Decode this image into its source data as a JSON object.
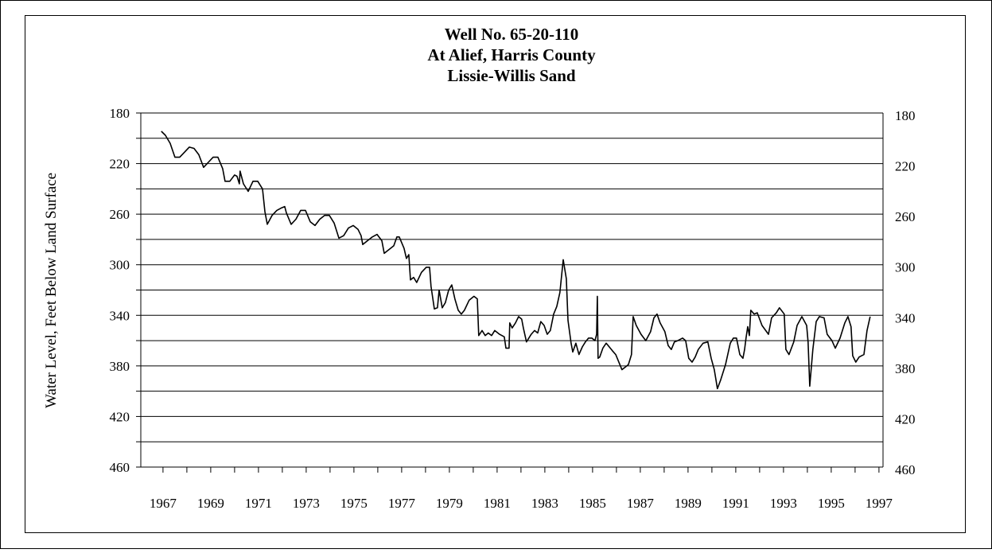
{
  "chart_data": {
    "type": "line",
    "title": [
      "Well No. 65-20-110",
      "At Alief, Harris County",
      "Lissie-Willis Sand"
    ],
    "ylabel": "Water Level, Feet Below Land Surface",
    "color": "#000000",
    "inverted_y": true,
    "grid": true,
    "xlim": [
      1966.07,
      1997.17
    ],
    "xticks": [
      1967,
      1969,
      1971,
      1973,
      1975,
      1977,
      1979,
      1981,
      1983,
      1985,
      1987,
      1989,
      1991,
      1993,
      1995,
      1997
    ],
    "x_minor_ticks": [
      1968,
      1970,
      1972,
      1974,
      1976,
      1978,
      1980,
      1982,
      1984,
      1986,
      1988,
      1990,
      1992,
      1994,
      1996
    ],
    "ylim": [
      180,
      460
    ],
    "yticks": [
      180,
      220,
      260,
      300,
      340,
      380,
      420,
      460
    ],
    "y_minor_ticks": [
      200,
      240,
      280,
      320,
      360,
      400,
      440
    ],
    "y2lim": [
      180,
      460
    ],
    "y2ticks": [
      180,
      220,
      260,
      300,
      340,
      380,
      420,
      460
    ],
    "x": [
      1966.93,
      1967.1,
      1967.3,
      1967.5,
      1967.7,
      1967.9,
      1968.1,
      1968.3,
      1968.5,
      1968.7,
      1968.9,
      1969.1,
      1969.3,
      1969.5,
      1969.6,
      1969.8,
      1970.0,
      1970.1,
      1970.2,
      1970.23,
      1970.37,
      1970.57,
      1970.77,
      1970.97,
      1971.17,
      1971.27,
      1971.37,
      1971.57,
      1971.77,
      1971.97,
      1972.1,
      1972.17,
      1972.37,
      1972.57,
      1972.77,
      1972.97,
      1973.17,
      1973.37,
      1973.57,
      1973.77,
      1973.97,
      1974.17,
      1974.37,
      1974.57,
      1974.77,
      1974.97,
      1975.17,
      1975.3,
      1975.37,
      1975.57,
      1975.77,
      1975.97,
      1976.17,
      1976.27,
      1976.47,
      1976.67,
      1976.8,
      1976.9,
      1977.1,
      1977.2,
      1977.3,
      1977.37,
      1977.5,
      1977.63,
      1977.83,
      1978.03,
      1978.17,
      1978.23,
      1978.37,
      1978.5,
      1978.57,
      1978.7,
      1978.83,
      1978.97,
      1979.1,
      1979.23,
      1979.37,
      1979.5,
      1979.63,
      1979.83,
      1980.03,
      1980.17,
      1980.23,
      1980.37,
      1980.5,
      1980.63,
      1980.77,
      1980.9,
      1981.1,
      1981.3,
      1981.37,
      1981.5,
      1981.53,
      1981.63,
      1981.77,
      1981.9,
      1982.03,
      1982.1,
      1982.23,
      1982.43,
      1982.57,
      1982.7,
      1982.83,
      1982.97,
      1983.1,
      1983.23,
      1983.37,
      1983.5,
      1983.63,
      1983.77,
      1983.9,
      1983.97,
      1984.1,
      1984.17,
      1984.3,
      1984.43,
      1984.57,
      1984.7,
      1984.83,
      1984.97,
      1985.1,
      1985.17,
      1985.2,
      1985.23,
      1985.3,
      1985.43,
      1985.57,
      1985.7,
      1985.83,
      1985.97,
      1986.1,
      1986.23,
      1986.37,
      1986.5,
      1986.63,
      1986.7,
      1986.83,
      1987.03,
      1987.23,
      1987.43,
      1987.57,
      1987.7,
      1987.83,
      1988.03,
      1988.17,
      1988.3,
      1988.43,
      1988.57,
      1988.77,
      1988.9,
      1989.03,
      1989.17,
      1989.3,
      1989.43,
      1989.63,
      1989.83,
      1989.97,
      1990.1,
      1990.17,
      1990.23,
      1990.37,
      1990.57,
      1990.77,
      1990.9,
      1991.03,
      1991.17,
      1991.3,
      1991.37,
      1991.43,
      1991.5,
      1991.57,
      1991.63,
      1991.77,
      1991.9,
      1992.1,
      1992.37,
      1992.5,
      1992.7,
      1992.83,
      1993.03,
      1993.1,
      1993.23,
      1993.43,
      1993.57,
      1993.77,
      1993.97,
      1994.03,
      1994.1,
      1994.23,
      1994.37,
      1994.5,
      1994.7,
      1994.83,
      1995.03,
      1995.17,
      1995.37,
      1995.57,
      1995.7,
      1995.83,
      1995.9,
      1996.03,
      1996.17,
      1996.37,
      1996.5,
      1996.63
    ],
    "values": [
      194.5,
      197.6,
      204,
      215,
      215,
      211,
      207,
      208,
      213,
      223,
      219,
      215,
      215,
      224,
      234,
      234,
      229,
      230,
      236,
      226,
      236,
      242,
      234,
      234,
      240,
      258,
      268,
      261,
      257,
      255,
      254,
      259,
      268,
      264,
      257,
      257,
      266,
      269,
      264,
      261,
      261,
      267,
      279,
      277,
      271,
      269,
      272,
      277,
      284,
      281,
      278,
      276,
      281,
      291,
      288,
      285,
      278,
      278,
      287,
      295,
      292,
      312,
      310,
      314,
      306,
      302,
      302,
      317,
      335,
      334,
      320,
      334,
      330,
      320,
      316,
      327,
      336,
      339,
      336,
      328,
      325,
      327,
      356,
      352,
      356,
      354,
      356,
      352,
      355,
      357,
      366,
      366,
      346,
      350,
      346,
      341,
      343,
      350,
      361,
      355,
      352,
      354,
      345,
      348,
      355,
      352,
      339,
      333,
      322,
      296,
      311,
      344,
      362,
      369,
      362,
      371,
      365,
      361,
      358,
      358,
      360,
      355,
      325,
      374,
      373,
      366,
      362,
      365,
      368,
      371,
      377,
      383,
      381,
      379,
      371,
      341,
      348,
      355,
      360,
      353,
      342,
      339,
      346,
      353,
      364,
      367,
      361,
      360,
      358,
      360,
      374,
      377,
      373,
      367,
      362,
      361,
      374,
      383,
      391,
      398,
      391,
      379,
      362,
      358,
      358,
      371,
      374,
      367,
      358,
      349,
      356,
      336,
      339,
      338,
      348,
      355,
      342,
      338,
      334,
      339,
      367,
      371,
      361,
      348,
      341,
      348,
      361,
      396,
      367,
      345,
      341,
      342,
      355,
      360,
      366,
      358,
      346,
      341,
      349,
      372,
      377,
      373,
      371,
      352,
      341
    ]
  }
}
